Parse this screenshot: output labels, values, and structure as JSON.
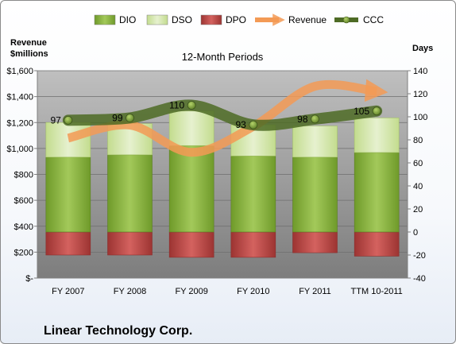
{
  "company": "Linear Technology Corp.",
  "chart_data": {
    "type": "bar",
    "title": "12-Month Periods",
    "categories": [
      "FY 2007",
      "FY 2008",
      "FY 2009",
      "FY 2010",
      "FY 2011",
      "TTM 10-2011"
    ],
    "left_axis": {
      "label_line1": "Revenue",
      "label_line2": "$millions",
      "ylim": [
        0,
        1600
      ],
      "ticks": [
        0,
        200,
        400,
        600,
        800,
        1000,
        1200,
        1400,
        1600
      ],
      "tick_labels": [
        "$-",
        "$200",
        "$400",
        "$600",
        "$800",
        "$1,000",
        "$1,200",
        "$1,400",
        "$1,600"
      ]
    },
    "right_axis": {
      "label": "Days",
      "ylim": [
        -40,
        140
      ],
      "ticks": [
        -40,
        -20,
        0,
        20,
        40,
        60,
        80,
        100,
        120,
        140
      ],
      "tick_labels": [
        "-40",
        "-20",
        "0",
        "20",
        "40",
        "60",
        "80",
        "100",
        "120",
        "140"
      ]
    },
    "legend": {
      "position": "top",
      "entries": [
        {
          "key": "dio",
          "label": "DIO"
        },
        {
          "key": "dso",
          "label": "DSO"
        },
        {
          "key": "dpo",
          "label": "DPO"
        },
        {
          "key": "revenue",
          "label": "Revenue"
        },
        {
          "key": "ccc",
          "label": "CCC"
        }
      ]
    },
    "series": [
      {
        "key": "dio",
        "name": "DIO",
        "axis": "right",
        "kind": "stacked-bar",
        "values": [
          65,
          67,
          75,
          66,
          65,
          69
        ]
      },
      {
        "key": "dso",
        "name": "DSO",
        "axis": "right",
        "kind": "stacked-bar",
        "values": [
          30,
          27,
          30,
          27,
          27,
          30
        ]
      },
      {
        "key": "dpo",
        "name": "DPO",
        "axis": "right",
        "kind": "negative-bar",
        "values": [
          -20,
          -20,
          -22,
          -22,
          -18,
          -21
        ]
      },
      {
        "key": "revenue",
        "name": "Revenue",
        "axis": "left",
        "kind": "line",
        "values": [
          1080,
          1180,
          970,
          1170,
          1480,
          1440
        ]
      },
      {
        "key": "ccc",
        "name": "CCC",
        "axis": "right",
        "kind": "line",
        "values": [
          97,
          99,
          110,
          93,
          98,
          105
        ],
        "data_labels": [
          "97",
          "99",
          "110",
          "93",
          "98",
          "105"
        ]
      }
    ],
    "colors": {
      "dio": "#8cb33e",
      "dso": "#d6e8b0",
      "dpo": "#c0504d",
      "revenue": "#f39a55",
      "ccc": "#4e6b25",
      "plot_bg": "#8c8c8c"
    },
    "grid": true
  }
}
